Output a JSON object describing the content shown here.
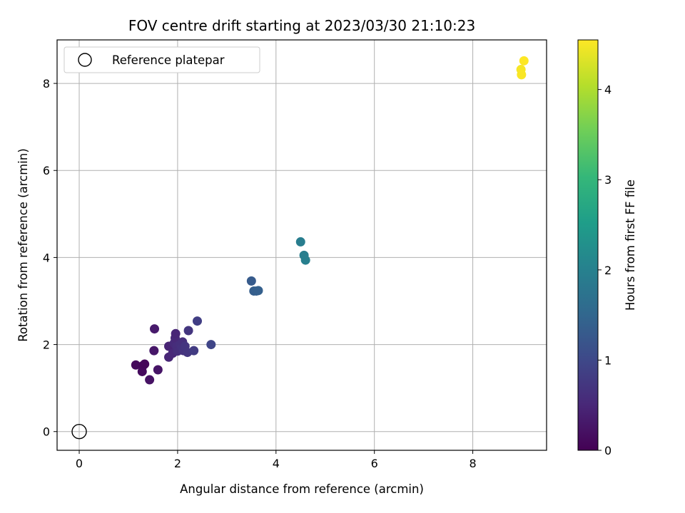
{
  "chart_data": {
    "type": "scatter",
    "title": "FOV centre drift starting at 2023/03/30 21:10:23",
    "xlabel": "Angular distance from reference (arcmin)",
    "ylabel": "Rotation from reference (arcmin)",
    "xlim": [
      -0.45,
      9.5
    ],
    "ylim": [
      -0.43,
      9.0
    ],
    "xticks": [
      0,
      2,
      4,
      6,
      8
    ],
    "yticks": [
      0,
      2,
      4,
      6,
      8
    ],
    "grid": true,
    "legend": {
      "placement": "upper-left",
      "entries": [
        {
          "label": "Reference platepar",
          "marker": "open-circle",
          "color": "#000000"
        }
      ]
    },
    "reference_point": {
      "x": 0,
      "y": 0
    },
    "colorbar": {
      "label": "Hours from first FF file",
      "range": [
        0,
        4.55
      ],
      "ticks": [
        0,
        1,
        2,
        3,
        4
      ],
      "colormap": "viridis",
      "colormap_stops": [
        "#440154",
        "#482878",
        "#3e4989",
        "#31688e",
        "#26828e",
        "#1f9e89",
        "#35b779",
        "#6ece58",
        "#b5de2b",
        "#fde725"
      ]
    },
    "series": [
      {
        "points": [
          {
            "x": 1.15,
            "y": 1.53,
            "t": 0.1
          },
          {
            "x": 1.28,
            "y": 1.38,
            "t": 0.12
          },
          {
            "x": 1.3,
            "y": 1.52,
            "t": 0.08
          },
          {
            "x": 1.33,
            "y": 1.55,
            "t": 0.05
          },
          {
            "x": 1.43,
            "y": 1.19,
            "t": 0.22
          },
          {
            "x": 1.52,
            "y": 1.86,
            "t": 0.28
          },
          {
            "x": 1.53,
            "y": 2.36,
            "t": 0.32
          },
          {
            "x": 1.6,
            "y": 1.42,
            "t": 0.25
          },
          {
            "x": 1.82,
            "y": 1.71,
            "t": 0.48
          },
          {
            "x": 1.82,
            "y": 1.96,
            "t": 0.45
          },
          {
            "x": 1.9,
            "y": 1.8,
            "t": 0.5
          },
          {
            "x": 1.93,
            "y": 2.03,
            "t": 0.55
          },
          {
            "x": 1.95,
            "y": 2.15,
            "t": 0.52
          },
          {
            "x": 1.96,
            "y": 2.25,
            "t": 0.48
          },
          {
            "x": 1.98,
            "y": 1.96,
            "t": 0.58
          },
          {
            "x": 2.0,
            "y": 1.85,
            "t": 0.6
          },
          {
            "x": 2.05,
            "y": 2.0,
            "t": 0.62
          },
          {
            "x": 2.08,
            "y": 1.95,
            "t": 0.65
          },
          {
            "x": 2.1,
            "y": 2.06,
            "t": 0.62
          },
          {
            "x": 2.12,
            "y": 1.86,
            "t": 0.68
          },
          {
            "x": 2.15,
            "y": 1.96,
            "t": 0.7
          },
          {
            "x": 2.2,
            "y": 1.82,
            "t": 0.72
          },
          {
            "x": 2.22,
            "y": 2.32,
            "t": 0.72
          },
          {
            "x": 2.33,
            "y": 1.86,
            "t": 0.8
          },
          {
            "x": 2.4,
            "y": 2.54,
            "t": 0.85
          },
          {
            "x": 2.68,
            "y": 2.0,
            "t": 0.95
          },
          {
            "x": 3.5,
            "y": 3.46,
            "t": 1.3
          },
          {
            "x": 3.55,
            "y": 3.23,
            "t": 1.35
          },
          {
            "x": 3.6,
            "y": 3.23,
            "t": 1.37
          },
          {
            "x": 3.64,
            "y": 3.24,
            "t": 1.38
          },
          {
            "x": 4.5,
            "y": 4.36,
            "t": 1.92
          },
          {
            "x": 4.57,
            "y": 4.05,
            "t": 1.95
          },
          {
            "x": 4.6,
            "y": 3.94,
            "t": 1.97
          },
          {
            "x": 8.98,
            "y": 8.32,
            "t": 4.5
          },
          {
            "x": 8.99,
            "y": 8.2,
            "t": 4.52
          },
          {
            "x": 9.04,
            "y": 8.52,
            "t": 4.55
          }
        ]
      }
    ]
  }
}
